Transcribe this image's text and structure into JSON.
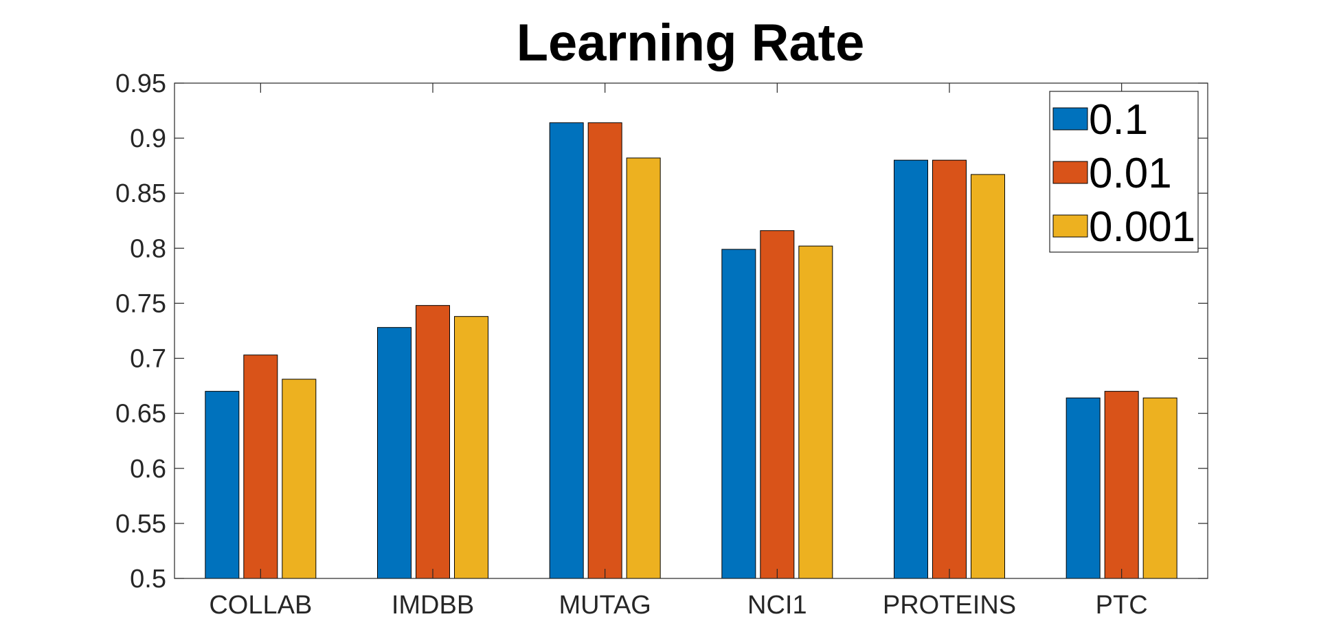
{
  "chart_data": {
    "type": "bar",
    "title": "Learning Rate",
    "xlabel": "",
    "ylabel": "",
    "ylim": [
      0.5,
      0.95
    ],
    "yticks": [
      "0.5",
      "0.55",
      "0.6",
      "0.65",
      "0.7",
      "0.75",
      "0.8",
      "0.85",
      "0.9",
      "0.95"
    ],
    "ytick_values": [
      0.5,
      0.55,
      0.6,
      0.65,
      0.7,
      0.75,
      0.8,
      0.85,
      0.9,
      0.95
    ],
    "categories": [
      "COLLAB",
      "IMDBB",
      "MUTAG",
      "NCI1",
      "PROTEINS",
      "PTC"
    ],
    "series": [
      {
        "name": "0.1",
        "color": "#0072BD",
        "values": [
          0.67,
          0.728,
          0.914,
          0.799,
          0.88,
          0.664
        ]
      },
      {
        "name": "0.01",
        "color": "#D95319",
        "values": [
          0.703,
          0.748,
          0.914,
          0.816,
          0.88,
          0.67
        ]
      },
      {
        "name": "0.001",
        "color": "#EDB120",
        "values": [
          0.681,
          0.738,
          0.882,
          0.802,
          0.867,
          0.664
        ]
      }
    ],
    "legend_position": "top-right",
    "grid": false
  }
}
